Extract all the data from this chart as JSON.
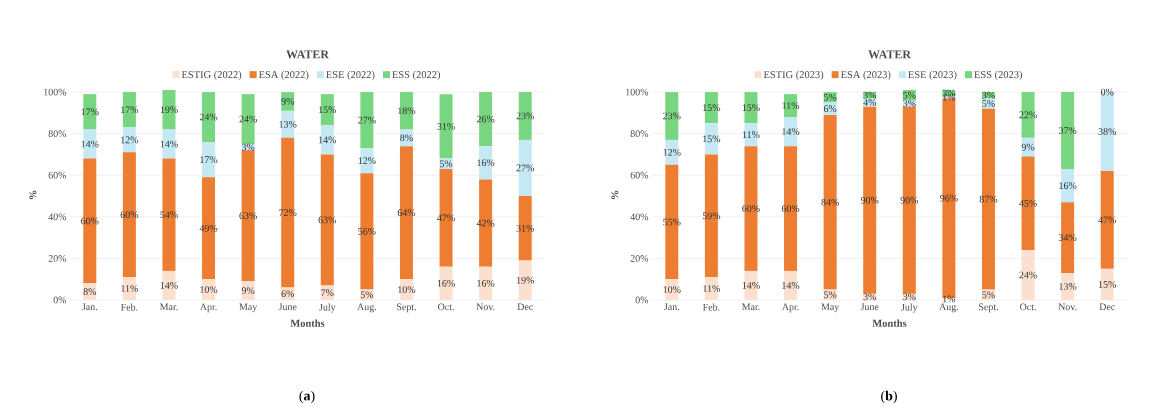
{
  "chart_data": [
    {
      "type": "bar",
      "stacked": true,
      "title": "WATER",
      "xlabel": "Months",
      "ylabel": "%",
      "legend": "top",
      "grid": "y",
      "categories": [
        "Jan.",
        "Feb.",
        "Mar.",
        "Apr.",
        "May",
        "June",
        "July",
        "Aug.",
        "Sept.",
        "Oct.",
        "Nov.",
        "Dec"
      ],
      "ylim": [
        0,
        101
      ],
      "yticks": [
        {
          "value": 0,
          "label": "0%"
        },
        {
          "value": 20,
          "label": "20%"
        },
        {
          "value": 40,
          "label": "40%"
        },
        {
          "value": 60,
          "label": "60%"
        },
        {
          "value": 80,
          "label": "80%"
        },
        {
          "value": 100,
          "label": "100%"
        }
      ],
      "series": [
        {
          "name": "ESTIG (2022)",
          "color": "#fbe0d0",
          "values": [
            8,
            11,
            14,
            10,
            9,
            6,
            7,
            5,
            10,
            16,
            16,
            19
          ],
          "value_labels": [
            "8%",
            "11%",
            "14%",
            "10%",
            "9%",
            "6%",
            "7%",
            "5%",
            "10%",
            "16%",
            "16%",
            "19%"
          ]
        },
        {
          "name": "ESA (2022)",
          "color": "#ed7d31",
          "values": [
            60,
            60,
            54,
            49,
            63,
            72,
            63,
            56,
            64,
            47,
            42,
            31
          ],
          "value_labels": [
            "60%",
            "60%",
            "54%",
            "49%",
            "63%",
            "72%",
            "63%",
            "56%",
            "64%",
            "47%",
            "42%",
            "31%"
          ]
        },
        {
          "name": "ESE (2022)",
          "color": "#c5e8f5",
          "values": [
            14,
            12,
            14,
            17,
            3,
            13,
            14,
            12,
            8,
            5,
            16,
            27
          ],
          "value_labels": [
            "14%",
            "12%",
            "14%",
            "17%",
            "3%",
            "13%",
            "14%",
            "12%",
            "8%",
            "5%",
            "16%",
            "27%"
          ]
        },
        {
          "name": "ESS (2022)",
          "color": "#77d67f",
          "values": [
            17,
            17,
            19,
            24,
            24,
            9,
            15,
            27,
            18,
            31,
            26,
            23
          ],
          "value_labels": [
            "17%",
            "17%",
            "19%",
            "24%",
            "24%",
            "9%",
            "15%",
            "27%",
            "18%",
            "31%",
            "26%",
            "23%"
          ]
        }
      ],
      "annotations": [
        "(**a**)"
      ]
    },
    {
      "type": "bar",
      "stacked": true,
      "title": "WATER",
      "xlabel": "Months",
      "ylabel": "%",
      "legend": "top",
      "grid": "y",
      "categories": [
        "Jan.",
        "Feb.",
        "Mar.",
        "Apr.",
        "May",
        "June",
        "July",
        "Aug.",
        "Sept.",
        "Oct.",
        "Nov.",
        "Dec"
      ],
      "ylim": [
        0,
        101
      ],
      "yticks": [
        {
          "value": 0,
          "label": "0%"
        },
        {
          "value": 20,
          "label": "20%"
        },
        {
          "value": 40,
          "label": "40%"
        },
        {
          "value": 60,
          "label": "60%"
        },
        {
          "value": 80,
          "label": "80%"
        },
        {
          "value": 100,
          "label": "100%"
        }
      ],
      "series": [
        {
          "name": "ESTIG (2023)",
          "color": "#fbe0d0",
          "values": [
            10,
            11,
            14,
            14,
            5,
            3,
            3,
            1,
            5,
            24,
            13,
            15
          ],
          "value_labels": [
            "10%",
            "11%",
            "14%",
            "14%",
            "5%",
            "3%",
            "3%",
            "1%",
            "5%",
            "24%",
            "13%",
            "15%"
          ]
        },
        {
          "name": "ESA (2023)",
          "color": "#ed7d31",
          "values": [
            55,
            59,
            60,
            60,
            84,
            90,
            90,
            96,
            87,
            45,
            34,
            47
          ],
          "value_labels": [
            "55%",
            "59%",
            "60%",
            "60%",
            "84%",
            "90%",
            "90%",
            "96%",
            "87%",
            "45%",
            "34%",
            "47%"
          ]
        },
        {
          "name": "ESE (2023)",
          "color": "#c5e8f5",
          "values": [
            12,
            15,
            11,
            14,
            6,
            4,
            3,
            1,
            5,
            9,
            16,
            38
          ],
          "value_labels": [
            "12%",
            "15%",
            "11%",
            "14%",
            "6%",
            "4%",
            "3%",
            "1%",
            "5%",
            "9%",
            "16%",
            "38%"
          ]
        },
        {
          "name": "ESS (2023)",
          "color": "#77d67f",
          "values": [
            23,
            15,
            15,
            11,
            5,
            3,
            5,
            3,
            3,
            22,
            37,
            0
          ],
          "value_labels": [
            "23%",
            "15%",
            "15%",
            "11%",
            "5%",
            "3%",
            "5%",
            "3%",
            "3%",
            "22%",
            "37%",
            "0%"
          ]
        }
      ],
      "annotations": [
        "(**b**)"
      ]
    }
  ]
}
